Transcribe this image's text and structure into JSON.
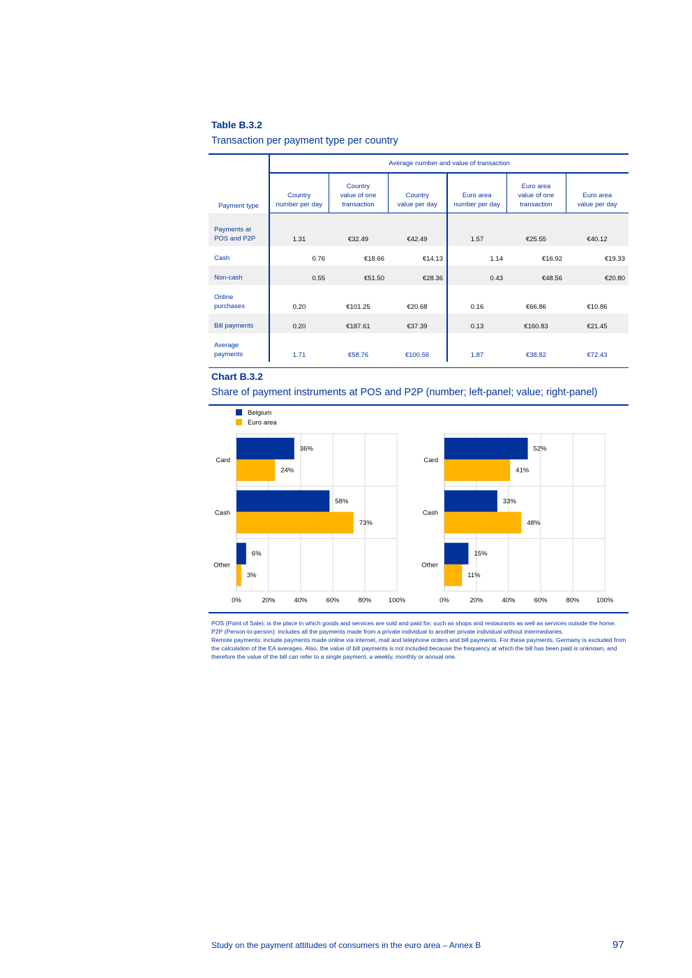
{
  "table": {
    "label": "Table B.3.2",
    "title": "Transaction per payment type per country",
    "group_header": "Average number and value of transaction",
    "col_payment_type": "Payment type",
    "columns": [
      [
        "Country",
        "number per day"
      ],
      [
        "Country",
        "value of one",
        "transaction"
      ],
      [
        "Country",
        "value per day"
      ],
      [
        "Euro area",
        "number per day"
      ],
      [
        "Euro area",
        "value of one",
        "transaction"
      ],
      [
        "Euro area",
        "value per day"
      ]
    ],
    "rows": [
      {
        "label": [
          "Payments at",
          "POS and P2P"
        ],
        "values": [
          "1.31",
          "€32.49",
          "€42.49",
          "1.57",
          "€25.55",
          "€40.12"
        ]
      },
      {
        "label": [
          "Cash"
        ],
        "values": [
          "0.76",
          "€18.66",
          "€14.13",
          "1.14",
          "€16.92",
          "€19.33"
        ]
      },
      {
        "label": [
          "Non-cash"
        ],
        "values": [
          "0.55",
          "€51.50",
          "€28.36",
          "0.43",
          "€48.56",
          "€20.80"
        ]
      },
      {
        "label": [
          "Online",
          "purchases"
        ],
        "values": [
          "0.20",
          "€101.25",
          "€20.68",
          "0.16",
          "€66.86",
          "€10.86"
        ]
      },
      {
        "label": [
          "Bill payments"
        ],
        "values": [
          "0.20",
          "€187.61",
          "€37.39",
          "0.13",
          "€160.83",
          "€21.45"
        ]
      },
      {
        "label": [
          "Average",
          "payments"
        ],
        "values": [
          "1.71",
          "€58.76",
          "€100.56",
          "1.87",
          "€38.82",
          "€72.43"
        ]
      }
    ]
  },
  "chart": {
    "label": "Chart B.3.2",
    "title": "Share of payment instruments at POS and P2P (number; left-panel; value; right-panel)",
    "legend": [
      {
        "name": "Belgium",
        "color": "#003299"
      },
      {
        "name": "Euro area",
        "color": "#ffb400"
      }
    ]
  },
  "chart_data": [
    {
      "type": "bar",
      "orientation": "horizontal",
      "categories": [
        "Card",
        "Cash",
        "Other"
      ],
      "series": [
        {
          "name": "Belgium",
          "values": [
            36,
            58,
            6
          ],
          "labels": [
            "36%",
            "58%",
            "6%"
          ]
        },
        {
          "name": "Euro area",
          "values": [
            24,
            73,
            3
          ],
          "labels": [
            "24%",
            "73%",
            "3%"
          ]
        }
      ],
      "xlim": [
        0,
        100
      ],
      "xticks": [
        "0%",
        "20%",
        "40%",
        "60%",
        "80%",
        "100%"
      ],
      "grid": true,
      "legend": "top-left"
    },
    {
      "type": "bar",
      "orientation": "horizontal",
      "categories": [
        "Card",
        "Cash",
        "Other"
      ],
      "series": [
        {
          "name": "Belgium",
          "values": [
            52,
            33,
            15
          ],
          "labels": [
            "52%",
            "33%",
            "15%"
          ]
        },
        {
          "name": "Euro area",
          "values": [
            41,
            48,
            11
          ],
          "labels": [
            "41%",
            "48%",
            "11%"
          ]
        }
      ],
      "xlim": [
        0,
        100
      ],
      "xticks": [
        "0%",
        "20%",
        "40%",
        "60%",
        "80%",
        "100%"
      ],
      "grid": true
    }
  ],
  "notes": [
    "POS (Point of Sale): is the place in which goods and services are sold and paid for, such as shops and restaurants as well as services outside the home.",
    "P2P (Person-to-person): includes all the payments made from a private individual to another private individual without intermediaries.",
    "Remote payments: include payments made online via internet, mail and telephone orders and bill payments. For these payments, Germany is excluded from the calculation of the EA averages. Also, the value of bill payments is not included because the frequency at which the bill has been paid is unknown, and therefore the value of the bill can refer to a single payment, a weekly, monthly or annual one."
  ],
  "footer": {
    "text": "Study on the payment attitudes of consumers in the euro area – Annex B",
    "page": "97"
  }
}
